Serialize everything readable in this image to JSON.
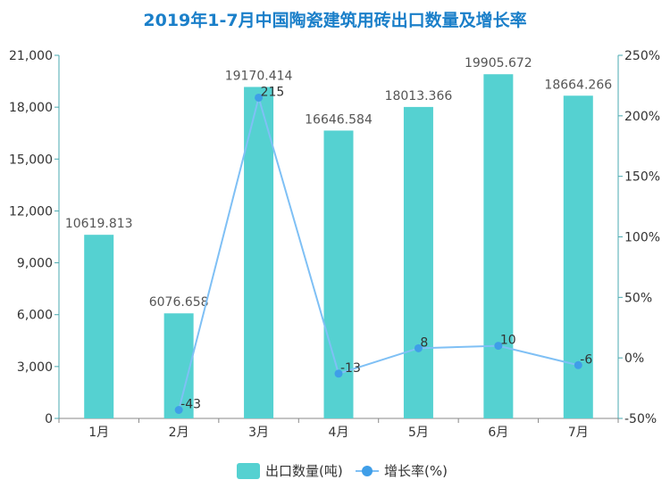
{
  "chart_data": {
    "type": "bar",
    "title": "2019年1-7月中国陶瓷建筑用砖出口数量及增长率",
    "categories": [
      "1月",
      "2月",
      "3月",
      "4月",
      "5月",
      "6月",
      "7月"
    ],
    "series": [
      {
        "name": "出口数量(吨)",
        "type": "bar",
        "axis": "left",
        "values": [
          10619.813,
          6076.658,
          19170.414,
          16646.584,
          18013.366,
          19905.672,
          18664.266
        ],
        "labels": [
          "10619.813",
          "6076.658",
          "19170.414",
          "16646.584",
          "18013.366",
          "19905.672",
          "18664.266"
        ]
      },
      {
        "name": "增长率(%)",
        "type": "line",
        "axis": "right",
        "values": [
          null,
          -43,
          215,
          -13,
          8,
          10,
          -6
        ],
        "labels": [
          "",
          "-43",
          "215",
          "-13",
          "8",
          "10",
          "-6"
        ]
      }
    ],
    "y_left": {
      "range": [
        0,
        21000
      ],
      "ticks": [
        0,
        3000,
        6000,
        9000,
        12000,
        15000,
        18000,
        21000
      ],
      "tick_labels": [
        "0",
        "3,000",
        "6,000",
        "9,000",
        "12,000",
        "15,000",
        "18,000",
        "21,000"
      ]
    },
    "y_right": {
      "range": [
        -50,
        250
      ],
      "ticks": [
        -50,
        0,
        50,
        100,
        150,
        200,
        250
      ],
      "tick_labels": [
        "-50%",
        "0%",
        "50%",
        "100%",
        "150%",
        "200%",
        "250%"
      ]
    },
    "grid": false,
    "legend": "bottom-center",
    "colors": {
      "bar": "#55d1d1",
      "line": "#7fc0f5",
      "point": "#3f9ee8",
      "title": "#1a7fc9",
      "left_axis": "#4aa9b0",
      "right_axis": "#4aa9b0"
    }
  }
}
